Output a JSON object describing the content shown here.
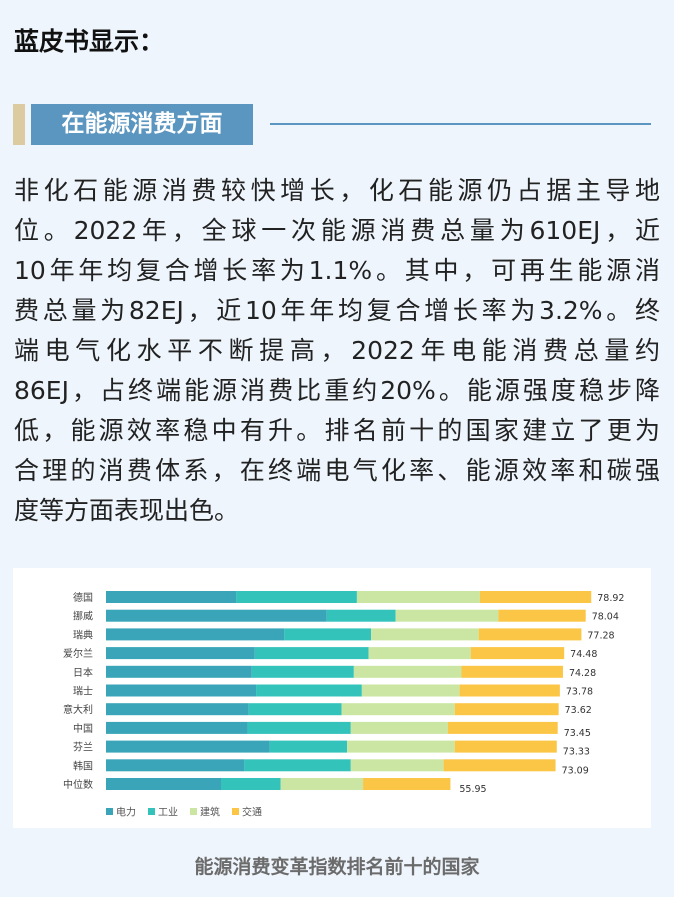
{
  "heading": "蓝皮书显示：",
  "section_title": "在能源消费方面",
  "paragraph_lines": [
    "非化石能源消费较快增长，化石能源仍占据主导地",
    "位。2022年，全球一次能源消费总量为610EJ，近",
    "10年年均复合增长率为1.1%。其中，可再生能源消",
    "费总量为82EJ，近10年年均复合增长率为3.2%。终",
    "端电气化水平不断提高，2022年电能消费总量约",
    "86EJ，占终端能源消费比重约20%。能源强度稳步降",
    "低，能源效率稳中有升。排名前十的国家建立了更为",
    "合理的消费体系，在终端电气化率、能源效率和碳强",
    "度等方面表现出色。"
  ],
  "caption": "能源消费变革指数排名前十的国家",
  "chart_data": {
    "type": "bar",
    "orientation": "horizontal",
    "stacked": true,
    "title": "能源消费变革指数排名前十的国家",
    "categories": [
      "德国",
      "挪威",
      "瑞典",
      "爱尔兰",
      "日本",
      "瑞士",
      "意大利",
      "中国",
      "芬兰",
      "韩国",
      "中位数"
    ],
    "totals": [
      "78.92",
      "78.04",
      "77.28",
      "74.48",
      "74.28",
      "73.78",
      "73.62",
      "73.45",
      "73.33",
      "73.09",
      "55.95"
    ],
    "series": [
      {
        "name": "电力",
        "color": "#3aa5b8",
        "values": [
          21.2,
          35.9,
          29.0,
          24.2,
          23.7,
          24.4,
          23.2,
          23.0,
          26.6,
          22.5,
          18.7
        ]
      },
      {
        "name": "工业",
        "color": "#33c3bb",
        "values": [
          19.6,
          11.2,
          14.1,
          18.5,
          16.6,
          17.2,
          15.1,
          16.8,
          12.6,
          17.3,
          9.7
        ]
      },
      {
        "name": "建筑",
        "color": "#cbe6a2",
        "values": [
          20.0,
          16.7,
          17.5,
          16.6,
          17.5,
          15.9,
          18.4,
          15.8,
          17.5,
          15.1,
          13.4
        ]
      },
      {
        "name": "交通",
        "color": "#fbc545",
        "values": [
          18.1,
          14.2,
          16.7,
          15.2,
          16.5,
          16.3,
          16.9,
          17.85,
          16.6,
          18.2,
          14.2
        ]
      }
    ],
    "legend": "bottom-left",
    "grid": false
  }
}
